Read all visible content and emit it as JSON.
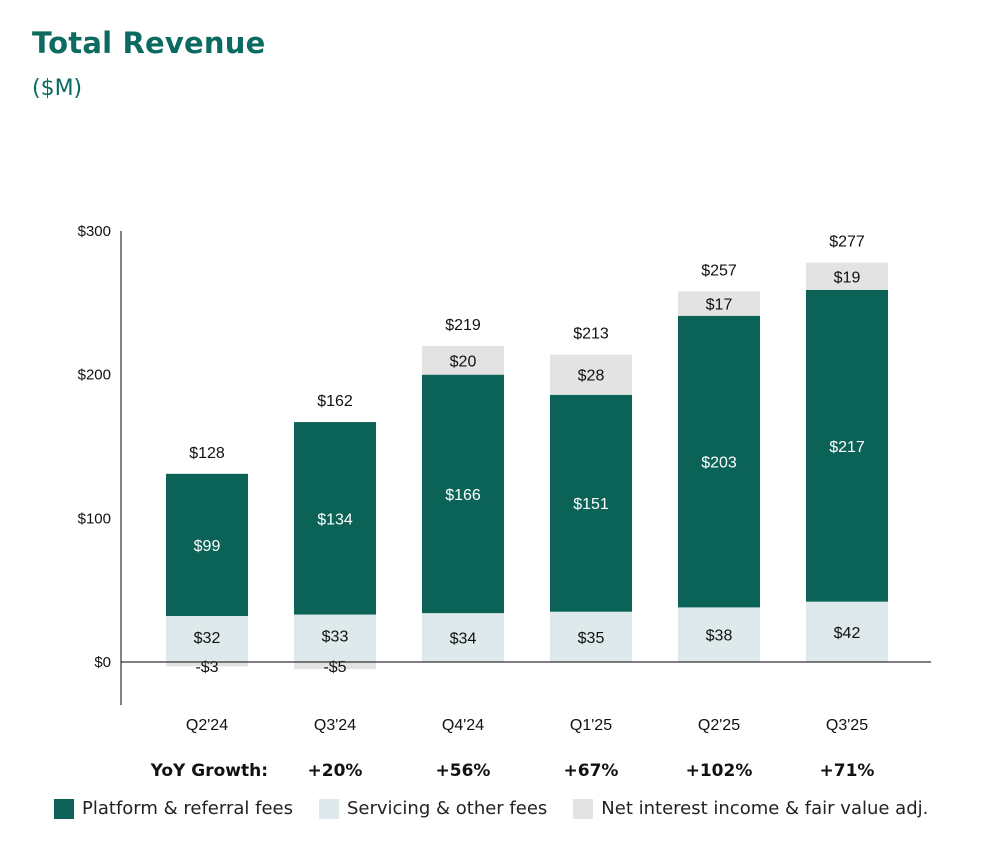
{
  "title": "Total Revenue",
  "subtitle": "($M)",
  "colors": {
    "platform": "#0b6358",
    "servicing": "#dde9ea",
    "net_interest": "#e3e3e3",
    "title": "#0b6b60"
  },
  "chart_data": {
    "type": "bar",
    "stacked": true,
    "categories": [
      "Q2'24",
      "Q3'24",
      "Q4'24",
      "Q1'25",
      "Q2'25",
      "Q3'25"
    ],
    "series": [
      {
        "name": "Platform & referral fees",
        "values": [
          99,
          134,
          166,
          151,
          203,
          217
        ],
        "labels": [
          "$99",
          "$134",
          "$166",
          "$151",
          "$203",
          "$217"
        ]
      },
      {
        "name": "Servicing & other fees",
        "values": [
          32,
          33,
          34,
          35,
          38,
          42
        ],
        "labels": [
          "$32",
          "$33",
          "$34",
          "$35",
          "$38",
          "$42"
        ]
      },
      {
        "name": "Net interest income & fair value adj.",
        "values": [
          -3,
          -5,
          20,
          28,
          17,
          19
        ],
        "labels": [
          "-$3",
          "-$5",
          "$20",
          "$28",
          "$17",
          "$19"
        ]
      }
    ],
    "totals": [
      "$128",
      "$162",
      "$219",
      "$213",
      "$257",
      "$277"
    ],
    "yticks": [
      0,
      100,
      200,
      300
    ],
    "ytick_labels": [
      "$0",
      "$100",
      "$200",
      "$300"
    ],
    "ylim": [
      -30,
      300
    ],
    "grid": false,
    "legend": "bottom",
    "growth": {
      "label": "YoY Growth:",
      "values": [
        "",
        "+20%",
        "+56%",
        "+67%",
        "+102%",
        "+71%"
      ]
    }
  }
}
